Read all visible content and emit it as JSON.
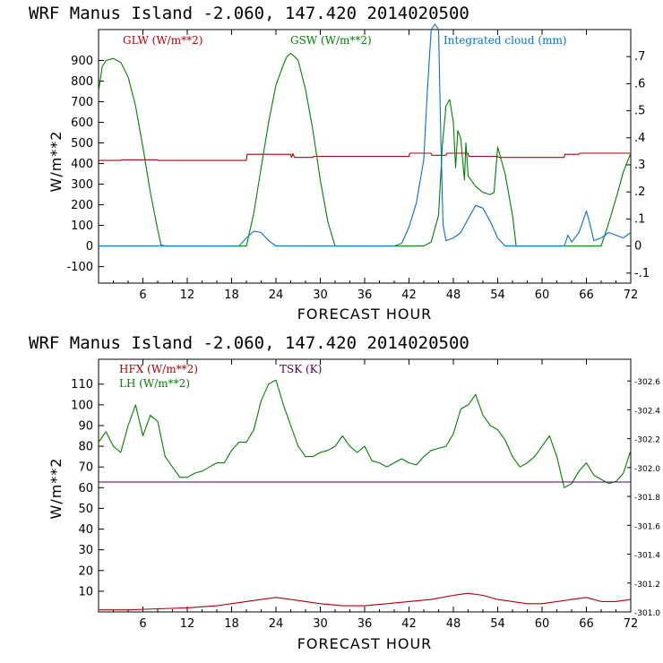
{
  "chart_data": [
    {
      "type": "line",
      "title": "WRF   Manus Island  -2.060, 147.420  2014020500",
      "xlabel": "FORECAST HOUR",
      "ylabel": "W/m**2",
      "xlim": [
        0,
        72
      ],
      "ylim": [
        -180,
        1050
      ],
      "y2lim": [
        -0.137,
        0.8
      ],
      "xticks": [
        "6",
        "12",
        "18",
        "24",
        "30",
        "36",
        "42",
        "48",
        "54",
        "60",
        "66",
        "72"
      ],
      "yticks": [
        "-100",
        "0",
        "100",
        "200",
        "300",
        "400",
        "500",
        "600",
        "700",
        "800",
        "900"
      ],
      "y2ticks": [
        "-.1",
        "0",
        ".1",
        ".2",
        ".3",
        ".4",
        ".5",
        ".6",
        ".7"
      ],
      "grid": false,
      "legend": "top",
      "series": [
        {
          "name": "GLW (W/m**2)",
          "color": "#b00000",
          "axis": "left",
          "x": [
            0,
            3,
            3.1,
            8,
            8.1,
            20,
            20.1,
            26,
            26.1,
            26.3,
            26.5,
            29,
            29.1,
            42,
            42.1,
            45,
            45.1,
            47,
            47.1,
            50,
            50.1,
            54,
            54.1,
            63,
            63.1,
            65,
            65.1,
            72
          ],
          "y": [
            415,
            415,
            418,
            418,
            415,
            415,
            445,
            445,
            430,
            448,
            430,
            430,
            435,
            435,
            450,
            450,
            440,
            440,
            450,
            450,
            435,
            435,
            430,
            430,
            445,
            445,
            450,
            450
          ]
        },
        {
          "name": "GSW (W/m**2)",
          "color": "#008000",
          "axis": "left",
          "x": [
            0,
            0.5,
            1,
            2,
            3,
            4,
            5,
            6,
            7,
            8,
            8.5,
            20,
            21,
            22,
            23,
            24,
            25,
            25.5,
            26,
            26.5,
            27,
            28,
            29,
            30,
            31,
            32,
            32.5,
            44,
            45,
            46,
            46.5,
            47,
            47.5,
            48,
            48.3,
            48.6,
            49,
            49.5,
            49.7,
            50,
            51,
            52,
            53,
            53.5,
            54,
            55,
            56,
            56.5,
            68,
            69,
            70,
            71,
            72
          ],
          "y": [
            750,
            870,
            900,
            910,
            890,
            820,
            680,
            480,
            260,
            80,
            0,
            0,
            160,
            380,
            600,
            780,
            880,
            920,
            935,
            920,
            900,
            760,
            560,
            320,
            120,
            0,
            0,
            0,
            20,
            150,
            480,
            680,
            710,
            600,
            380,
            560,
            520,
            320,
            500,
            340,
            290,
            260,
            250,
            260,
            480,
            350,
            150,
            0,
            0,
            110,
            230,
            360,
            450
          ]
        },
        {
          "name": "Integrated cloud (mm)",
          "color": "#0070d0",
          "axis": "right",
          "x": [
            0,
            8,
            8.5,
            9,
            19,
            20,
            21,
            22,
            23,
            24,
            40,
            41,
            42,
            43,
            44,
            44.5,
            45,
            45.5,
            46,
            46.3,
            46.6,
            47,
            48,
            49,
            50,
            51,
            52,
            53,
            54,
            55,
            63,
            63.5,
            64,
            65,
            66,
            66.5,
            67,
            68,
            69,
            70,
            71,
            72
          ],
          "y": [
            0,
            0,
            0.003,
            0,
            0,
            0.03,
            0.055,
            0.05,
            0.02,
            0,
            0,
            0.01,
            0.07,
            0.16,
            0.32,
            0.58,
            0.8,
            0.82,
            0.8,
            0.4,
            0.08,
            0.02,
            0.03,
            0.05,
            0.1,
            0.15,
            0.14,
            0.09,
            0.03,
            0,
            0,
            0.04,
            0.015,
            0.05,
            0.13,
            0.08,
            0.02,
            0.03,
            0.05,
            0.04,
            0.03,
            0.05
          ]
        }
      ]
    },
    {
      "type": "line",
      "title": "WRF   Manus Island  -2.060, 147.420  2014020500",
      "xlabel": "FORECAST HOUR",
      "ylabel": "W/m**2",
      "xlim": [
        0,
        72
      ],
      "ylim": [
        0,
        122
      ],
      "y2lim": [
        301.0,
        302.75
      ],
      "xticks": [
        "6",
        "12",
        "18",
        "24",
        "30",
        "36",
        "42",
        "48",
        "54",
        "60",
        "66",
        "72"
      ],
      "yticks": [
        "10",
        "20",
        "30",
        "40",
        "50",
        "60",
        "70",
        "80",
        "90",
        "100",
        "110"
      ],
      "y2ticks": [
        "301.0",
        "301.2",
        "301.4",
        "301.6",
        "301.8",
        "302.0",
        "302.2",
        "302.4",
        "302.6"
      ],
      "grid": false,
      "legend": "top-left",
      "series": [
        {
          "name": "HFX (W/m**2)",
          "color": "#b00000",
          "axis": "left",
          "x": [
            0,
            4,
            8,
            12,
            16,
            20,
            22,
            24,
            26,
            28,
            30,
            33,
            36,
            39,
            42,
            45,
            48,
            50,
            52,
            54,
            56,
            58,
            60,
            62,
            64,
            66,
            68,
            70,
            72
          ],
          "y": [
            1,
            1,
            1.5,
            2,
            3,
            5,
            6,
            7,
            6,
            5,
            4,
            3,
            3,
            4,
            5,
            6,
            8,
            9,
            8,
            6,
            5,
            4,
            4,
            5,
            6,
            7,
            5,
            5,
            6
          ]
        },
        {
          "name": "LH  (W/m**2)",
          "color": "#008000",
          "axis": "left",
          "x": [
            0,
            1,
            2,
            3,
            4,
            5,
            6,
            7,
            8,
            9,
            10,
            11,
            12,
            13,
            14,
            15,
            16,
            17,
            18,
            19,
            20,
            21,
            22,
            23,
            24,
            25,
            26,
            27,
            28,
            29,
            30,
            31,
            32,
            33,
            34,
            35,
            36,
            37,
            38,
            39,
            40,
            41,
            42,
            43,
            44,
            45,
            46,
            47,
            48,
            49,
            50,
            51,
            52,
            53,
            54,
            55,
            56,
            57,
            58,
            59,
            60,
            61,
            62,
            63,
            64,
            65,
            66,
            67,
            68,
            69,
            70,
            71,
            72
          ],
          "y": [
            82,
            87,
            80,
            77,
            90,
            100,
            85,
            95,
            92,
            75,
            70,
            65,
            65,
            67,
            68,
            70,
            72,
            72,
            78,
            82,
            82,
            88,
            102,
            110,
            112,
            100,
            90,
            80,
            75,
            75,
            77,
            78,
            80,
            85,
            80,
            77,
            80,
            73,
            72,
            70,
            72,
            74,
            72,
            71,
            75,
            78,
            79,
            80,
            86,
            98,
            100,
            105,
            95,
            90,
            88,
            83,
            75,
            70,
            72,
            75,
            80,
            85,
            75,
            60,
            62,
            68,
            72,
            66,
            64,
            62,
            63,
            67,
            78
          ]
        },
        {
          "name": "TSK (K)",
          "color": "#500060",
          "axis": "right",
          "x": [
            0,
            72
          ],
          "y": [
            301.9,
            301.9
          ]
        }
      ]
    }
  ]
}
